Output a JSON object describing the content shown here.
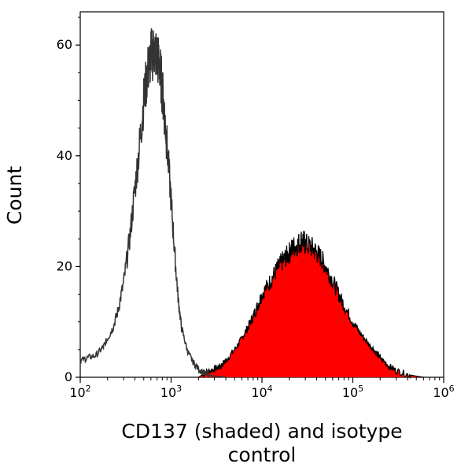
{
  "chart_data": {
    "type": "histogram-overlay",
    "xlabel_lines": [
      "CD137 (shaded) and isotype",
      "control"
    ],
    "ylabel": "Count",
    "x_scale": "log10",
    "xlim": [
      100,
      1000000
    ],
    "ylim": [
      0,
      66
    ],
    "x_ticks": [
      {
        "base": "10",
        "exp": "2",
        "value": 100
      },
      {
        "base": "10",
        "exp": "3",
        "value": 1000
      },
      {
        "base": "10",
        "exp": "4",
        "value": 10000
      },
      {
        "base": "10",
        "exp": "5",
        "value": 100000
      },
      {
        "base": "10",
        "exp": "6",
        "value": 1000000
      }
    ],
    "y_ticks": [
      {
        "label": "0",
        "value": 0
      },
      {
        "label": "20",
        "value": 20
      },
      {
        "label": "40",
        "value": 40
      },
      {
        "label": "60",
        "value": 60
      }
    ],
    "series": [
      {
        "name": "CD137 (shaded)",
        "style": "filled",
        "fill": "#ff0000",
        "stroke": "#000000",
        "x": [
          2000,
          2500,
          3000,
          3500,
          4000,
          5000,
          6000,
          7000,
          8000,
          9000,
          10000,
          12000,
          14000,
          16000,
          18000,
          20000,
          22000,
          25000,
          28000,
          30000,
          35000,
          40000,
          45000,
          50000,
          60000,
          70000,
          80000,
          100000,
          120000,
          150000,
          180000,
          200000,
          250000,
          300000,
          400000,
          500000,
          600000
        ],
        "values": [
          0,
          1,
          1.5,
          2,
          3,
          5,
          7,
          9,
          11,
          13,
          15,
          17,
          19,
          20.5,
          21.5,
          22.5,
          23.5,
          24,
          25,
          24,
          23.5,
          22.5,
          21.5,
          20,
          17.5,
          15,
          13,
          10,
          8,
          6,
          4.5,
          3.5,
          2,
          1.2,
          0.5,
          0.2,
          0
        ]
      },
      {
        "name": "Isotype control",
        "style": "outline",
        "stroke": "#333333",
        "x": [
          100,
          120,
          150,
          180,
          200,
          230,
          260,
          300,
          350,
          400,
          450,
          500,
          550,
          600,
          650,
          700,
          750,
          800,
          850,
          900,
          1000,
          1100,
          1200,
          1300,
          1500,
          1700,
          2000,
          2300,
          2600,
          3000,
          3500,
          4000
        ],
        "values": [
          3,
          3.5,
          4,
          5.5,
          7,
          9,
          12,
          17,
          25,
          34,
          42,
          50,
          55,
          58,
          59,
          58,
          56,
          52,
          47,
          42,
          32,
          22,
          14,
          9,
          5,
          3,
          1.5,
          0.8,
          0.4,
          0.2,
          0.1,
          0
        ]
      }
    ]
  }
}
